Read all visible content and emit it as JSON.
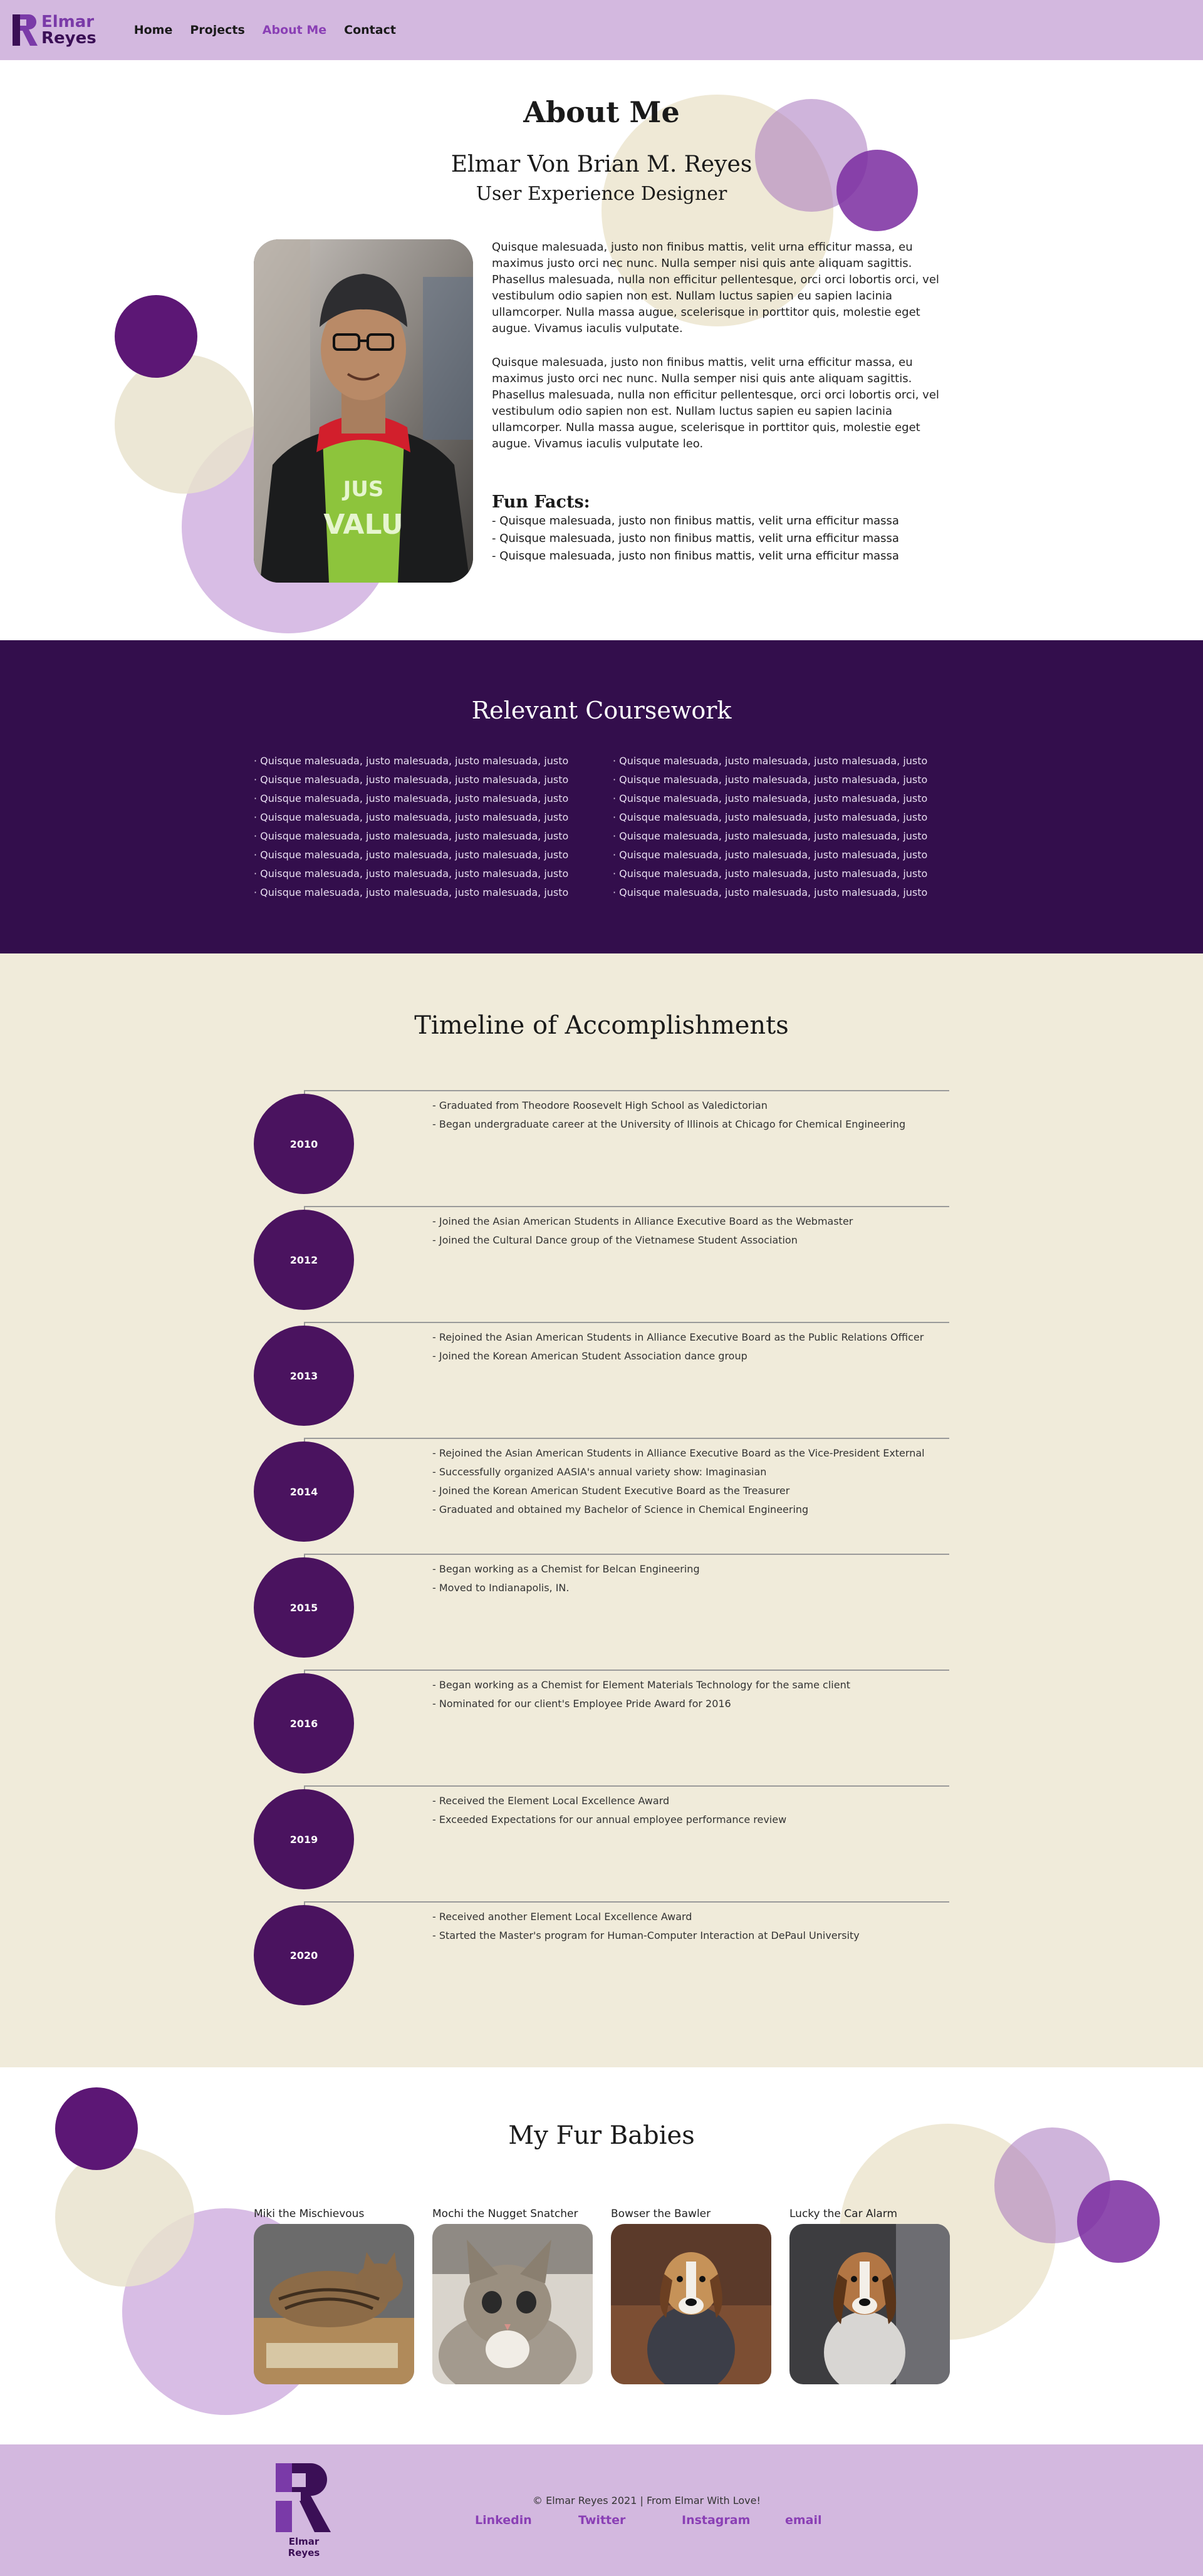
{
  "nav": {
    "logo_line1": "Elmar",
    "logo_line2": "Reyes",
    "links": [
      {
        "label": "Home"
      },
      {
        "label": "Projects"
      },
      {
        "label": "About Me",
        "active": true
      },
      {
        "label": "Contact"
      }
    ]
  },
  "about": {
    "title": "About Me",
    "full_name": "Elmar Von Brian M. Reyes",
    "role": "User Experience Designer",
    "bio": [
      "Quisque malesuada, justo non finibus mattis, velit urna efficitur massa, eu maximus justo orci nec nunc. Nulla semper nisi quis ante aliquam sagittis. Phasellus malesuada, nulla non efficitur pellentesque, orci orci lobortis orci, vel vestibulum odio sapien non est. Nullam luctus sapien eu sapien lacinia ullamcorper. Nulla massa augue, scelerisque in porttitor quis, molestie eget augue. Vivamus iaculis vulputate.",
      "Quisque malesuada, justo non finibus mattis, velit urna efficitur massa, eu maximus justo orci nec nunc. Nulla semper nisi quis ante aliquam sagittis. Phasellus malesuada, nulla non efficitur pellentesque, orci orci lobortis orci, vel vestibulum odio sapien non est. Nullam luctus sapien eu sapien lacinia ullamcorper. Nulla massa augue, scelerisque in porttitor quis, molestie eget augue. Vivamus iaculis vulputate leo."
    ],
    "fun_facts_title": "Fun Facts:",
    "fun_facts": [
      "- Quisque malesuada, justo non finibus mattis, velit urna efficitur massa",
      "- Quisque malesuada, justo non finibus mattis, velit urna efficitur massa",
      "- Quisque malesuada, justo non finibus mattis, velit urna efficitur massa"
    ]
  },
  "coursework": {
    "title": "Relevant Coursework",
    "col1": [
      "· Quisque malesuada, justo malesuada, justo malesuada, justo",
      "· Quisque malesuada, justo malesuada, justo malesuada, justo",
      "· Quisque malesuada, justo malesuada, justo malesuada, justo",
      "· Quisque malesuada, justo malesuada, justo malesuada, justo",
      "· Quisque malesuada, justo malesuada, justo malesuada, justo",
      "· Quisque malesuada, justo malesuada, justo malesuada, justo",
      "· Quisque malesuada, justo malesuada, justo malesuada, justo",
      "· Quisque malesuada, justo malesuada, justo malesuada, justo"
    ],
    "col2": [
      "· Quisque malesuada, justo malesuada, justo malesuada, justo",
      "· Quisque malesuada, justo malesuada, justo malesuada, justo",
      "· Quisque malesuada, justo malesuada, justo malesuada, justo",
      "· Quisque malesuada, justo malesuada, justo malesuada, justo",
      "· Quisque malesuada, justo malesuada, justo malesuada, justo",
      "· Quisque malesuada, justo malesuada, justo malesuada, justo",
      "· Quisque malesuada, justo malesuada, justo malesuada, justo",
      "· Quisque malesuada, justo malesuada, justo malesuada, justo"
    ]
  },
  "timeline": {
    "title": "Timeline of Accomplishments",
    "entries": [
      {
        "year": "2010",
        "items": [
          "- Graduated from Theodore Roosevelt High School as Valedictorian",
          "- Began undergraduate career at the University of Illinois at Chicago for Chemical Engineering"
        ]
      },
      {
        "year": "2012",
        "items": [
          "- Joined the Asian American Students in Alliance Executive Board as the Webmaster",
          "- Joined the Cultural Dance group of the Vietnamese Student Association"
        ]
      },
      {
        "year": "2013",
        "items": [
          "- Rejoined the Asian American Students in Alliance Executive Board as the Public Relations Officer",
          "- Joined the Korean American Student Association dance group"
        ]
      },
      {
        "year": "2014",
        "items": [
          "- Rejoined the Asian American Students in Alliance Executive Board as the Vice-President External",
          "- Successfully organized AASIA's annual variety show: Imaginasian",
          "- Joined the Korean American Student Executive Board as the Treasurer",
          "- Graduated and obtained my Bachelor of Science in Chemical Engineering"
        ]
      },
      {
        "year": "2015",
        "items": [
          "- Began working as a Chemist for Belcan Engineering",
          "- Moved to Indianapolis, IN."
        ]
      },
      {
        "year": "2016",
        "items": [
          "- Began working as a Chemist for Element Materials Technology for the same client",
          "- Nominated for our client's Employee Pride Award for 2016"
        ]
      },
      {
        "year": "2019",
        "items": [
          "- Received the Element Local Excellence Award",
          "- Exceeded Expectations for our annual employee performance review"
        ]
      },
      {
        "year": "2020",
        "items": [
          "- Received another Element Local Excellence Award",
          "- Started the Master's program for Human-Computer Interaction at DePaul University"
        ]
      }
    ]
  },
  "pets": {
    "title": "My Fur Babies",
    "items": [
      {
        "name": "Miki the Mischievous"
      },
      {
        "name": "Mochi the Nugget Snatcher"
      },
      {
        "name": "Bowser the Bawler"
      },
      {
        "name": "Lucky the Car Alarm"
      }
    ]
  },
  "footer": {
    "logo_text": "Elmar Reyes",
    "copyright": "© Elmar Reyes 2021 | From Elmar With Love!",
    "links": [
      {
        "label": "Linkedin"
      },
      {
        "label": "Twitter"
      },
      {
        "label": "Instagram"
      },
      {
        "label": "email"
      }
    ]
  },
  "colors": {
    "nav_bg": "#d3b8df",
    "accent": "#8a3fb5",
    "dark_purple": "#330e4c",
    "timeline_bg": "#f0ebda",
    "circle_purple": "#4a135f"
  }
}
